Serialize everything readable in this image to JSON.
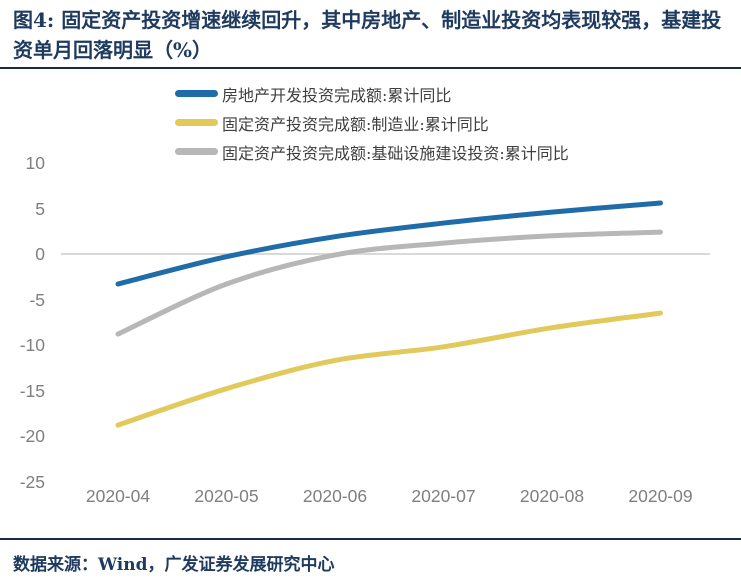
{
  "header": {
    "title": "图4:  固定资产投资增速继续回升，其中房地产、制造业投资均表现较强，基建投资单月回落明显（%）"
  },
  "chart_data": {
    "type": "line",
    "categories": [
      "2020-04",
      "2020-05",
      "2020-06",
      "2020-07",
      "2020-08",
      "2020-09"
    ],
    "series": [
      {
        "name": "房地产开发投资完成额:累计同比",
        "color": "#1F6CA9",
        "values": [
          -3.3,
          -0.3,
          1.9,
          3.4,
          4.6,
          5.6
        ]
      },
      {
        "name": "固定资产投资完成额:制造业:累计同比",
        "color": "#E2C95B",
        "values": [
          -18.8,
          -14.8,
          -11.7,
          -10.2,
          -8.1,
          -6.5
        ]
      },
      {
        "name": "固定资产投资完成额:基础设施建设投资:累计同比",
        "color": "#B7B7B7",
        "values": [
          -8.8,
          -3.3,
          -0.1,
          1.2,
          2.0,
          2.4
        ]
      }
    ],
    "title": "",
    "xlabel": "",
    "ylabel": "",
    "unit": "%",
    "ylim": [
      -25,
      10
    ],
    "yticks": [
      10,
      5,
      0,
      -5,
      -10,
      -15,
      -20,
      -25
    ],
    "grid": "zero-line-only",
    "zero_line_color": "#D9D9D9",
    "legend_position": "top",
    "line_style": "smooth"
  },
  "footer": {
    "source": "数据来源：Wind，广发证券发展研究中心"
  },
  "colors": {
    "title_navy": "#1E3A5F",
    "divider": "#1B2A44",
    "tick_gray": "#7F7F7F"
  }
}
